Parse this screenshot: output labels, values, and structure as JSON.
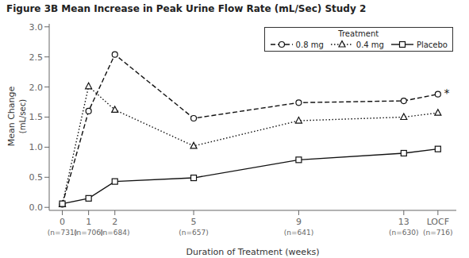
{
  "chart_data": {
    "type": "line",
    "title": "Figure 3B Mean Increase in Peak Urine Flow Rate (mL/Sec) Study 2",
    "xlabel": "Duration of Treatment (weeks)",
    "ylabel": "Mean Change",
    "ylabel_units": "(mL/sec)",
    "x": [
      0,
      1,
      2,
      5,
      9,
      13,
      14.3
    ],
    "xlim": [
      -0.5,
      15.0
    ],
    "xticks": [
      0,
      1,
      2,
      5,
      9,
      13,
      {
        "value": 14.3,
        "label": "LOCF"
      }
    ],
    "xtick_sublabels": [
      "(n=731)",
      "(n=706)",
      "(n=684)",
      "(n=657)",
      "(n=641)",
      "(n=630)",
      "(n=716)"
    ],
    "ylim": [
      -0.05,
      3.05
    ],
    "yticks": [
      {
        "value": 0.0,
        "label": "0.0"
      },
      0.5,
      {
        "value": 1.0,
        "label": "1.0"
      },
      1.5,
      {
        "value": 2.0,
        "label": "2.0"
      },
      2.5,
      {
        "value": 3.0,
        "label": "3.0"
      }
    ],
    "series": [
      {
        "name": "0.8 mg",
        "color": "#111111",
        "marker": "circle",
        "line_style": "dashed",
        "values": [
          0.05,
          1.6,
          2.54,
          1.48,
          1.74,
          1.77,
          1.88
        ]
      },
      {
        "name": "0.4 mg",
        "color": "#111111",
        "marker": "triangle",
        "line_style": "dotted",
        "values": [
          0.05,
          2.01,
          1.62,
          1.02,
          1.44,
          1.5,
          1.57
        ]
      },
      {
        "name": "Placebo",
        "color": "#111111",
        "marker": "square",
        "line_style": "solid",
        "values": [
          0.06,
          0.15,
          0.43,
          0.49,
          0.79,
          0.9,
          0.97
        ]
      }
    ],
    "annotations": [
      {
        "text": "*",
        "x": 14.5,
        "y": 1.9
      }
    ],
    "legend": "upper right",
    "legend_title": "Treatment",
    "grid": false
  }
}
